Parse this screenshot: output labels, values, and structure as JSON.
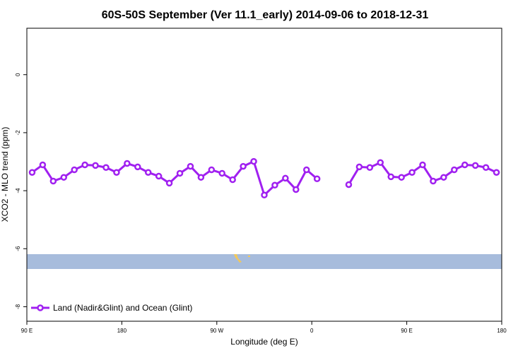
{
  "chart_data": {
    "type": "line",
    "title": "60S-50S September (Ver 11.1_early)   2014-09-06 to 2018-12-31",
    "x_label": "Longitude (deg E)",
    "y_label": "XCO2 - MLO trend (ppm)",
    "x": [
      95,
      105,
      115,
      125,
      135,
      145,
      155,
      165,
      175,
      185,
      195,
      205,
      215,
      225,
      235,
      245,
      255,
      265,
      275,
      285,
      295,
      305,
      315,
      325,
      335,
      345,
      355,
      365,
      375,
      385,
      395,
      405,
      415,
      425,
      435,
      445,
      455,
      465,
      475,
      485,
      495,
      505,
      515,
      525,
      535
    ],
    "series": [
      {
        "name": "Land (Nadir&Glint) and Ocean (Glint)",
        "color": "#a020f0",
        "values": [
          -3.37,
          -3.11,
          -3.67,
          -3.54,
          -3.28,
          -3.11,
          -3.13,
          -3.2,
          -3.37,
          -3.06,
          -3.18,
          -3.37,
          -3.5,
          -3.74,
          -3.4,
          -3.16,
          -3.54,
          -3.28,
          -3.4,
          -3.62,
          -3.16,
          -2.99,
          -4.15,
          -3.81,
          -3.57,
          -3.96,
          -3.28,
          -3.59,
          null,
          null,
          -3.79,
          -3.18,
          -3.2,
          -3.03,
          -3.52,
          -3.54,
          -3.37,
          -3.11,
          -3.67,
          -3.54,
          -3.28,
          -3.11,
          -3.13,
          -3.2,
          -3.37
        ]
      }
    ],
    "xlim": [
      90,
      540
    ],
    "xticks": [
      {
        "value": 90,
        "label": "90 E"
      },
      180,
      {
        "value": 270,
        "label": "90 W"
      },
      {
        "value": 360,
        "label": "0"
      },
      {
        "value": 450,
        "label": "90 E"
      },
      {
        "value": 540,
        "label": "180"
      }
    ],
    "ylim": [
      -8.5,
      1.6
    ],
    "yticks": [
      0,
      -2,
      -4,
      -6,
      -8
    ],
    "legend_position": "bottom-left"
  }
}
